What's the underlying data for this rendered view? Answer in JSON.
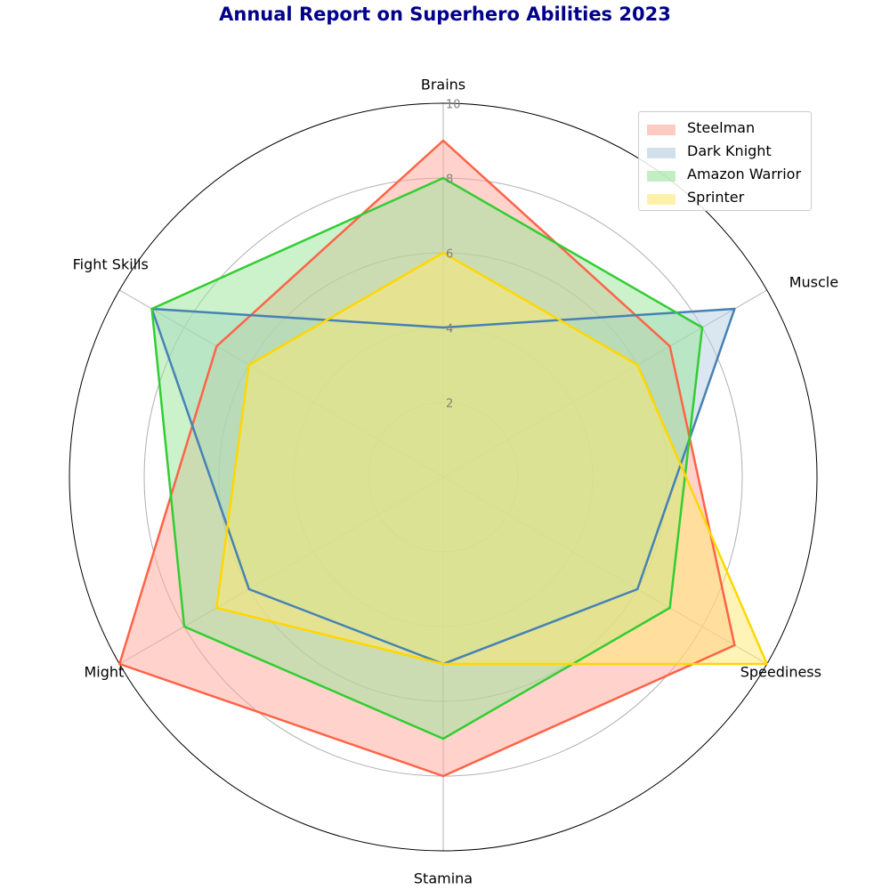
{
  "chart_data": {
    "type": "radar",
    "title": "Annual Report on Superhero Abilities 2023",
    "axes": [
      "Brains",
      "Muscle",
      "Speediness",
      "Stamina",
      "Might",
      "Fight Skills"
    ],
    "rlim": [
      0,
      10
    ],
    "r_ticks": [
      "2",
      "4",
      "6",
      "8",
      "10"
    ],
    "grid": true,
    "legend_position": "top-right",
    "series": [
      {
        "name": "Steelman",
        "values": [
          9,
          7,
          9,
          8,
          10,
          7
        ],
        "color": "#ff6347",
        "fill": "#ffa79a"
      },
      {
        "name": "Dark Knight",
        "values": [
          4,
          9,
          6,
          5,
          6,
          9
        ],
        "color": "#4682b4",
        "fill": "#b5cde1"
      },
      {
        "name": "Amazon Warrior",
        "values": [
          8,
          8,
          7,
          7,
          8,
          9
        ],
        "color": "#32cd32",
        "fill": "#98e698"
      },
      {
        "name": "Sprinter",
        "values": [
          6,
          6,
          10,
          5,
          7,
          6
        ],
        "color": "#ffd700",
        "fill": "#ffe970"
      }
    ]
  }
}
